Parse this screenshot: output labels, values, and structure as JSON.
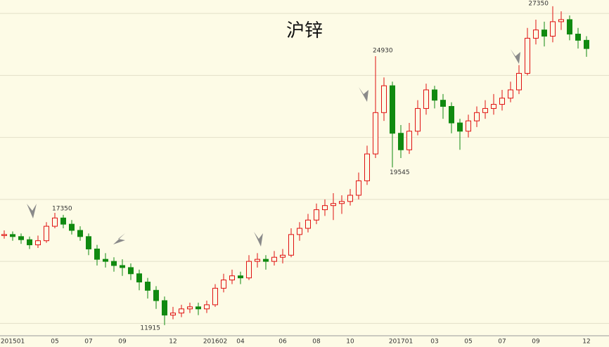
{
  "chart_data": {
    "type": "candlestick",
    "title": "沪锌",
    "categories": [
      null,
      "201501",
      null,
      null,
      null,
      null,
      "05",
      null,
      null,
      null,
      "07",
      null,
      null,
      null,
      "09",
      null,
      null,
      null,
      null,
      null,
      "12",
      null,
      null,
      null,
      null,
      "201602",
      null,
      null,
      "04",
      null,
      null,
      null,
      null,
      "06",
      null,
      null,
      null,
      "08",
      null,
      null,
      null,
      "10",
      null,
      null,
      null,
      null,
      null,
      "201701",
      null,
      null,
      null,
      "03",
      null,
      null,
      null,
      "05",
      null,
      null,
      null,
      "07",
      null,
      null,
      null,
      "09",
      null,
      null,
      null,
      null,
      null,
      "12"
    ],
    "open": [
      16250,
      16300,
      16200,
      16050,
      15800,
      16000,
      16700,
      17100,
      16800,
      16500,
      16200,
      15600,
      15100,
      15000,
      14800,
      14700,
      14400,
      14000,
      13600,
      13100,
      12400,
      12500,
      12700,
      12800,
      12700,
      12900,
      13700,
      14100,
      14300,
      14200,
      15000,
      15100,
      15000,
      15200,
      15300,
      16300,
      16600,
      17000,
      17500,
      17700,
      17800,
      17900,
      18200,
      18900,
      20200,
      22200,
      23500,
      21200,
      20400,
      21300,
      22400,
      23300,
      22800,
      22500,
      21700,
      21300,
      21800,
      22200,
      22400,
      22600,
      22900,
      23300,
      24100,
      25800,
      26200,
      25900,
      26600,
      26700,
      26000,
      25700
    ],
    "high": [
      16500,
      16450,
      16350,
      16200,
      16250,
      16900,
      17350,
      17250,
      17000,
      16700,
      16350,
      15800,
      15400,
      15200,
      15100,
      14900,
      14600,
      14200,
      13800,
      13300,
      12800,
      12900,
      13000,
      13000,
      13100,
      13900,
      14400,
      14600,
      14500,
      15300,
      15400,
      15300,
      15500,
      15600,
      16600,
      16900,
      17300,
      17800,
      18000,
      18300,
      18200,
      18500,
      19300,
      20600,
      24930,
      23900,
      23700,
      21600,
      21700,
      22800,
      23600,
      23500,
      23100,
      22700,
      21900,
      22100,
      22500,
      22800,
      23100,
      23300,
      23700,
      24500,
      26300,
      26700,
      26600,
      27350,
      27100,
      26900,
      26300,
      25900
    ],
    "low": [
      16100,
      16000,
      15850,
      15600,
      15650,
      15900,
      16600,
      16600,
      16300,
      16000,
      15300,
      14800,
      14700,
      14500,
      14300,
      14100,
      13600,
      13200,
      12700,
      11915,
      12200,
      12300,
      12500,
      12400,
      12500,
      12800,
      13500,
      13900,
      13900,
      14100,
      14700,
      14600,
      14800,
      14900,
      15200,
      16000,
      16400,
      16800,
      17200,
      17000,
      17300,
      17700,
      18000,
      18700,
      20000,
      21800,
      19545,
      20000,
      20200,
      21100,
      22100,
      22400,
      21900,
      21200,
      20400,
      21000,
      21500,
      21900,
      22100,
      22300,
      22700,
      23100,
      24000,
      25500,
      25400,
      25600,
      26200,
      25700,
      25300,
      24900
    ],
    "close": [
      16300,
      16200,
      16050,
      15800,
      16000,
      16700,
      17100,
      16800,
      16500,
      16200,
      15600,
      15100,
      15000,
      14800,
      14700,
      14400,
      14000,
      13600,
      13100,
      12400,
      12500,
      12700,
      12800,
      12700,
      12900,
      13700,
      14100,
      14300,
      14200,
      15000,
      15100,
      15000,
      15200,
      15300,
      16300,
      16600,
      17000,
      17500,
      17700,
      17800,
      17900,
      18200,
      18900,
      20200,
      22200,
      23500,
      21200,
      20400,
      21300,
      22400,
      23300,
      22800,
      22500,
      21700,
      21300,
      21800,
      22200,
      22400,
      22600,
      22900,
      23300,
      24100,
      25800,
      26200,
      25900,
      26600,
      26700,
      26000,
      25700,
      25300
    ],
    "up_color": "#e01010",
    "down_color": "#108a10",
    "ylim": [
      11400,
      27650
    ],
    "yticks": [
      12000,
      15000,
      18000,
      21000,
      24000,
      27000
    ],
    "grid": true
  }
}
